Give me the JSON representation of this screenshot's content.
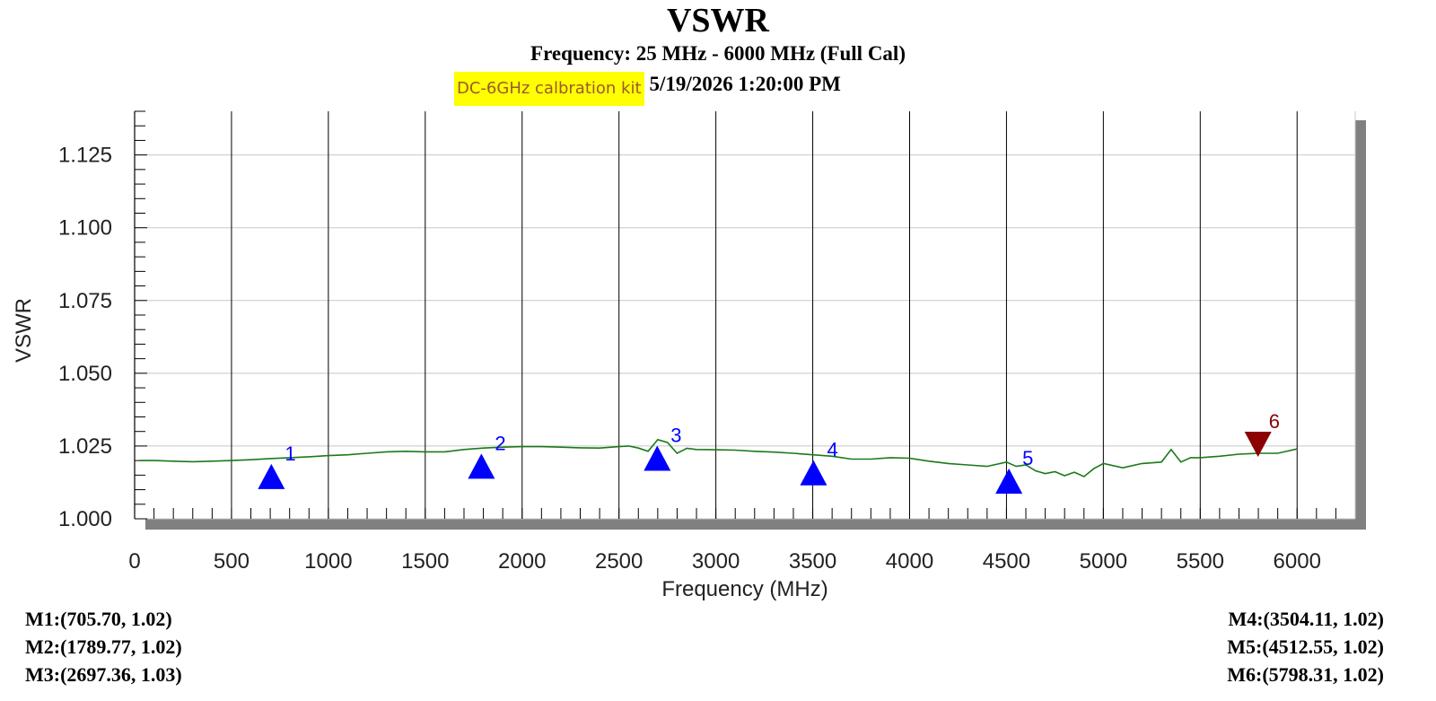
{
  "chart_data": {
    "type": "line",
    "title": "VSWR",
    "subtitle": "Frequency: 25 MHz - 6000 MHz (Full Cal)",
    "kit_label": "DC-6GHz calbration kit",
    "datetime": "5/19/2026 1:20:00 PM",
    "xlabel": "Frequency (MHz)",
    "ylabel": "VSWR",
    "xlim": [
      0,
      6300
    ],
    "ylim": [
      1.0,
      1.14
    ],
    "x_ticks": [
      "0",
      "500",
      "1000",
      "1500",
      "2000",
      "2500",
      "3000",
      "3500",
      "4000",
      "4500",
      "5000",
      "5500",
      "6000"
    ],
    "y_ticks": [
      "1.000",
      "1.025",
      "1.050",
      "1.075",
      "1.100",
      "1.125"
    ],
    "grid": true,
    "series": [
      {
        "color": "#1a7a1a",
        "x": [
          25,
          100,
          200,
          300,
          400,
          500,
          600,
          700,
          800,
          900,
          1000,
          1100,
          1200,
          1300,
          1400,
          1500,
          1600,
          1700,
          1800,
          1900,
          2000,
          2100,
          2200,
          2300,
          2400,
          2500,
          2550,
          2600,
          2650,
          2700,
          2750,
          2800,
          2850,
          2900,
          3000,
          3100,
          3200,
          3300,
          3400,
          3500,
          3600,
          3700,
          3800,
          3900,
          4000,
          4100,
          4200,
          4300,
          4400,
          4500,
          4550,
          4600,
          4650,
          4700,
          4750,
          4800,
          4850,
          4900,
          4950,
          5000,
          5100,
          5200,
          5300,
          5350,
          5400,
          5450,
          5500,
          5600,
          5700,
          5800,
          5900,
          6000
        ],
        "y": [
          1.02,
          1.02,
          1.0198,
          1.0196,
          1.0198,
          1.02,
          1.0203,
          1.0207,
          1.021,
          1.0213,
          1.0217,
          1.022,
          1.0225,
          1.023,
          1.0232,
          1.023,
          1.023,
          1.0238,
          1.0243,
          1.0246,
          1.0248,
          1.0248,
          1.0246,
          1.0244,
          1.0243,
          1.0248,
          1.025,
          1.0243,
          1.0232,
          1.0272,
          1.0262,
          1.0225,
          1.0242,
          1.0238,
          1.0237,
          1.0236,
          1.0232,
          1.0229,
          1.0225,
          1.022,
          1.0215,
          1.0205,
          1.0205,
          1.021,
          1.0208,
          1.0198,
          1.019,
          1.0185,
          1.018,
          1.0195,
          1.018,
          1.0185,
          1.0165,
          1.0155,
          1.0162,
          1.0148,
          1.016,
          1.0145,
          1.0172,
          1.019,
          1.0175,
          1.019,
          1.0195,
          1.0238,
          1.0195,
          1.021,
          1.021,
          1.0215,
          1.0222,
          1.0225,
          1.0225,
          1.024
        ]
      }
    ],
    "markers": [
      {
        "id": "1",
        "x": 705.7,
        "y": 1.02,
        "dir": "up",
        "color": "#0000ff",
        "readout": "M1:(705.70,  1.02)"
      },
      {
        "id": "2",
        "x": 1789.77,
        "y": 1.02,
        "dir": "up",
        "color": "#0000ff",
        "readout": "M2:(1789.77,  1.02)"
      },
      {
        "id": "3",
        "x": 2697.36,
        "y": 1.03,
        "dir": "up",
        "color": "#0000ff",
        "readout": "M3:(2697.36,  1.03)"
      },
      {
        "id": "4",
        "x": 3504.11,
        "y": 1.02,
        "dir": "up",
        "color": "#0000ff",
        "readout": "M4:(3504.11,  1.02)"
      },
      {
        "id": "5",
        "x": 4512.55,
        "y": 1.02,
        "dir": "up",
        "color": "#0000ff",
        "readout": "M5:(4512.55,  1.02)"
      },
      {
        "id": "6",
        "x": 5798.31,
        "y": 1.02,
        "dir": "down",
        "color": "#8b0000",
        "readout": "M6:(5798.31,  1.02)"
      }
    ]
  }
}
